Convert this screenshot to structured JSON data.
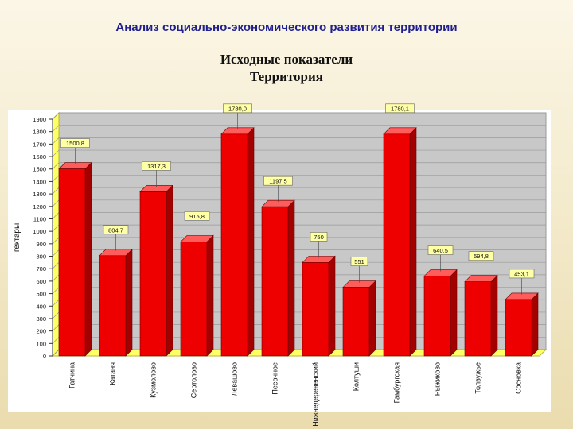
{
  "page_title": "Анализ социально-экономического  развития территории",
  "chart_data": {
    "type": "bar",
    "title_lines": [
      "Исходные показатели",
      "Территория"
    ],
    "ylabel": "гектары",
    "xlabel": "",
    "ylim": [
      0,
      1900
    ],
    "yticks": [
      0,
      100,
      200,
      300,
      400,
      500,
      600,
      700,
      800,
      900,
      1000,
      1100,
      1200,
      1300,
      1400,
      1500,
      1600,
      1700,
      1800,
      1900
    ],
    "categories": [
      "Гатчина",
      "Катаня",
      "Кузмолово",
      "Сертолово",
      "Левашово",
      "Песочное",
      "Нижнедеревенский",
      "Колтуши",
      "Гамбургская",
      "Рыжиково",
      "Толвужье",
      "Сосновка"
    ],
    "values": [
      1500.8,
      804.7,
      1317.3,
      915.8,
      1780.0,
      1197.5,
      750,
      551,
      1780.1,
      640.5,
      594.8,
      453.1
    ],
    "value_labels": [
      "1500,8",
      "804,7",
      "1317,3",
      "915,8",
      "1780,0",
      "1197,5",
      "750",
      "551",
      "1780,1",
      "640,5",
      "594,8",
      "453,1"
    ],
    "colors": {
      "bar_front": "#ee0000",
      "bar_side": "#a30000",
      "bar_top": "#ff5c5c",
      "wall": "#c8c8c8",
      "floor": "#ffff66",
      "label_bg": "#ffffa6"
    },
    "grid": true
  }
}
